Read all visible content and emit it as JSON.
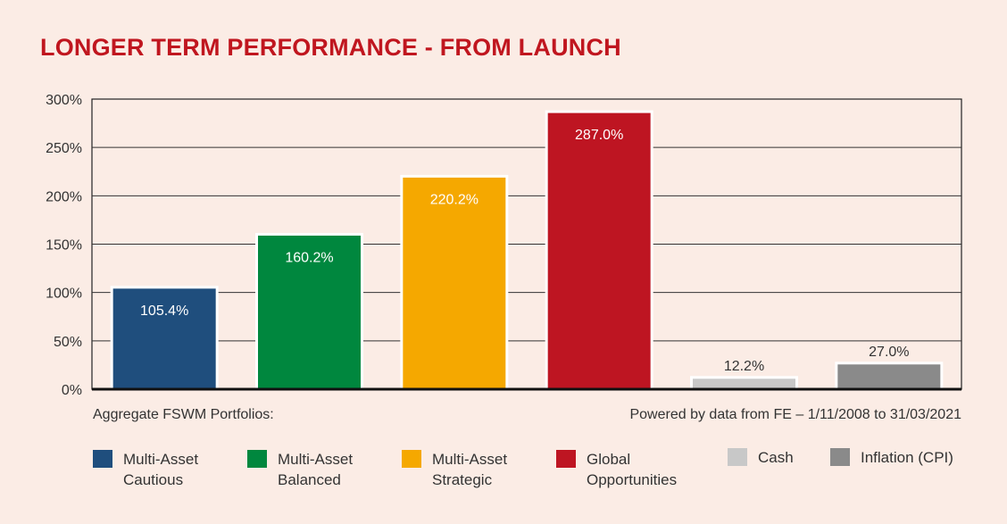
{
  "title": "LONGER TERM PERFORMANCE - FROM LAUNCH",
  "footer": {
    "left_note": "Aggregate FSWM Portfolios:",
    "right_note": "Powered by data from FE – 1/11/2008 to 31/03/2021"
  },
  "chart_data": {
    "type": "bar",
    "categories": [
      "Multi-Asset Cautious",
      "Multi-Asset Balanced",
      "Multi-Asset Strategic",
      "Global Opportunities",
      "Cash",
      "Inflation (CPI)"
    ],
    "values": [
      105.4,
      160.2,
      220.2,
      287.0,
      12.2,
      27.0
    ],
    "data_labels": [
      "105.4%",
      "160.2%",
      "220.2%",
      "287.0%",
      "12.2%",
      "27.0%"
    ],
    "colors": [
      "#1f4e7d",
      "#00873e",
      "#f5a800",
      "#be1522",
      "#c8c8c8",
      "#8a8a8a"
    ],
    "ylim": [
      0,
      300
    ],
    "yticks": [
      "0%",
      "50%",
      "100%",
      "150%",
      "200%",
      "250%",
      "300%"
    ],
    "grid": true,
    "legend_position": "bottom"
  },
  "legend": [
    {
      "label": "Multi-Asset\nCautious",
      "color": "#1f4e7d"
    },
    {
      "label": "Multi-Asset\nBalanced",
      "color": "#00873e"
    },
    {
      "label": "Multi-Asset\nStrategic",
      "color": "#f5a800"
    },
    {
      "label": "Global\nOpportunities",
      "color": "#be1522"
    },
    {
      "label": "Cash",
      "color": "#c8c8c8"
    },
    {
      "label": "Inflation (CPI)",
      "color": "#8a8a8a"
    }
  ]
}
